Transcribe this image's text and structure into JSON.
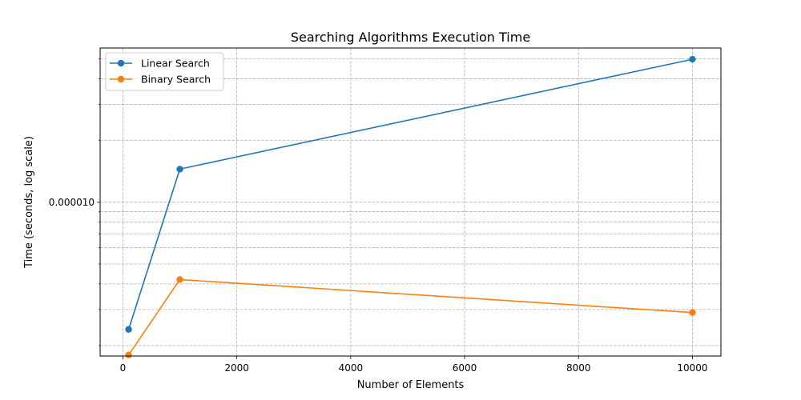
{
  "chart_data": {
    "type": "line",
    "title": "Searching Algorithms Execution Time",
    "xlabel": "Number of Elements",
    "ylabel": "Time (seconds, log scale)",
    "x": [
      100,
      1000,
      10000
    ],
    "xlim": [
      -400,
      10500
    ],
    "xticks": [
      0,
      2000,
      4000,
      6000,
      8000,
      10000
    ],
    "xtick_labels": [
      "0",
      "2000",
      "4000",
      "6000",
      "8000",
      "10000"
    ],
    "yscale": "log",
    "ylim": [
      1.78e-06,
      5.65e-05
    ],
    "yticks_major": [
      1e-05
    ],
    "ytick_labels": [
      "0.000010"
    ],
    "yticks_minor": [
      2e-06,
      3e-06,
      4e-06,
      5e-06,
      6e-06,
      7e-06,
      8e-06,
      9e-06,
      2e-05,
      3e-05,
      4e-05,
      5e-05
    ],
    "grid": true,
    "legend_position": "top-left",
    "series": [
      {
        "name": "Linear Search",
        "values": [
          2.4e-06,
          1.45e-05,
          4.98e-05
        ],
        "color": "#1f77b4",
        "marker": "circle"
      },
      {
        "name": "Binary Search",
        "values": [
          1.8e-06,
          4.2e-06,
          2.9e-06
        ],
        "color": "#ff7f0e",
        "marker": "circle"
      }
    ]
  }
}
